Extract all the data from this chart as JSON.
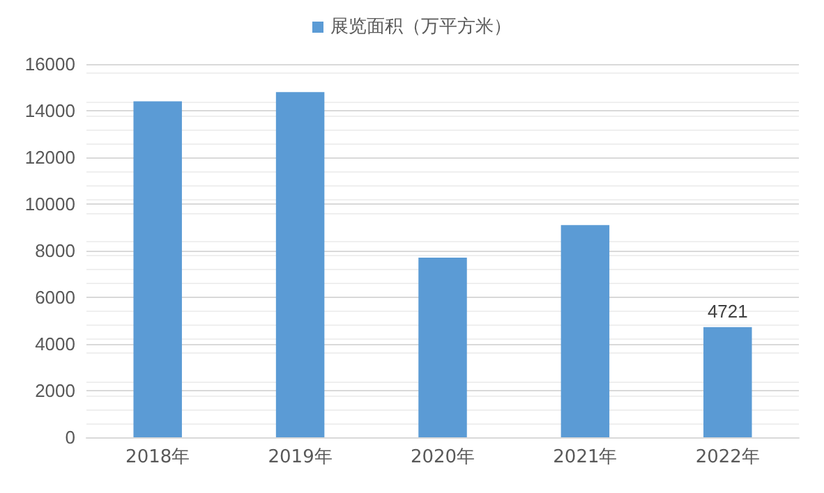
{
  "chart_data": {
    "type": "bar",
    "categories": [
      "2018年",
      "2019年",
      "2020年",
      "2021年",
      "2022年"
    ],
    "series": [
      {
        "name": "展览面积（万平方米）",
        "color": "#5b9bd5",
        "values": [
          14400,
          14800,
          7700,
          9100,
          4721
        ],
        "value_labels": [
          null,
          null,
          null,
          null,
          "4721"
        ]
      }
    ],
    "ylim": [
      0,
      16000
    ],
    "yticks": [
      0,
      2000,
      4000,
      6000,
      8000,
      10000,
      12000,
      14000,
      16000
    ],
    "grid": "y",
    "legend": "top"
  }
}
